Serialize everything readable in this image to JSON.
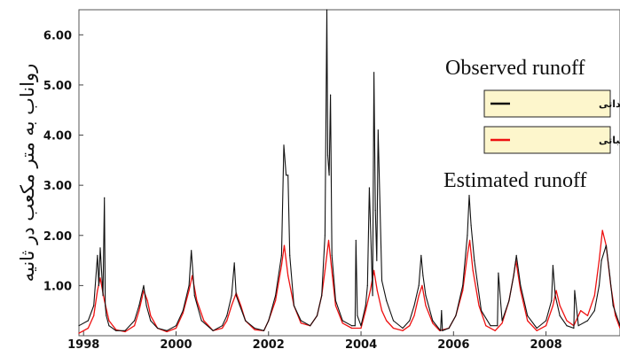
{
  "chart_data": {
    "type": "line",
    "ylabel": "رواناب به متر مکعب در ثانیه",
    "xlim": [
      1997.9,
      2009.6
    ],
    "ylim": [
      0,
      6.5
    ],
    "x_ticks": [
      1998,
      2000,
      2002,
      2004,
      2006,
      2008
    ],
    "x_tick_labels": [
      "1998",
      "2000",
      "2002",
      "2004",
      "2006",
      "2008"
    ],
    "y_ticks": [
      1,
      2,
      3,
      4,
      5,
      6
    ],
    "y_tick_labels": [
      "1.00",
      "2.00",
      "3.00",
      "4.00",
      "5.00",
      "6.00"
    ],
    "grid": false,
    "legend_placement": "right",
    "annotations": [
      {
        "text": "Observed runoff",
        "near": "upper-right"
      },
      {
        "text": "Estimated runoff",
        "near": "middle-right"
      }
    ],
    "series": [
      {
        "name": "رواناب مشاهداتی",
        "color": "#111111",
        "x": [
          1997.9,
          1998.1,
          1998.22,
          1998.3,
          1998.33,
          1998.36,
          1998.42,
          1998.45,
          1998.47,
          1998.49,
          1998.55,
          1998.7,
          1998.9,
          1999.1,
          1999.2,
          1999.3,
          1999.36,
          1999.45,
          1999.6,
          1999.8,
          2000.0,
          2000.15,
          2000.28,
          2000.33,
          2000.4,
          2000.55,
          2000.8,
          2001.0,
          2001.1,
          2001.2,
          2001.26,
          2001.3,
          2001.38,
          2001.5,
          2001.7,
          2001.9,
          2002.0,
          2002.15,
          2002.28,
          2002.33,
          2002.38,
          2002.42,
          2002.46,
          2002.55,
          2002.7,
          2002.9,
          2003.05,
          2003.15,
          2003.22,
          2003.26,
          2003.28,
          2003.31,
          2003.34,
          2003.37,
          2003.45,
          2003.6,
          2003.8,
          2003.87,
          2003.89,
          2003.92,
          2004.0,
          2004.1,
          2004.14,
          2004.18,
          2004.25,
          2004.28,
          2004.31,
          2004.34,
          2004.37,
          2004.45,
          2004.55,
          2004.7,
          2004.9,
          2005.05,
          2005.15,
          2005.25,
          2005.3,
          2005.34,
          2005.4,
          2005.55,
          2005.72,
          2005.74,
          2005.76,
          2005.9,
          2006.05,
          2006.2,
          2006.3,
          2006.34,
          2006.38,
          2006.45,
          2006.6,
          2006.8,
          2006.95,
          2006.97,
          2007.05,
          2007.2,
          2007.3,
          2007.36,
          2007.45,
          2007.6,
          2007.8,
          2008.0,
          2008.12,
          2008.15,
          2008.2,
          2008.3,
          2008.45,
          2008.6,
          2008.62,
          2008.7,
          2008.9,
          2009.05,
          2009.15,
          2009.2,
          2009.3,
          2009.38,
          2009.45,
          2009.6
        ],
        "values": [
          0.2,
          0.3,
          0.6,
          1.6,
          1.0,
          1.75,
          0.8,
          2.75,
          0.6,
          0.4,
          0.2,
          0.1,
          0.1,
          0.3,
          0.6,
          1.0,
          0.6,
          0.3,
          0.15,
          0.1,
          0.2,
          0.5,
          1.0,
          1.7,
          0.8,
          0.3,
          0.1,
          0.2,
          0.4,
          0.8,
          1.45,
          0.8,
          0.6,
          0.3,
          0.15,
          0.1,
          0.3,
          0.8,
          1.6,
          3.8,
          3.2,
          3.2,
          1.6,
          0.6,
          0.3,
          0.2,
          0.4,
          0.8,
          2.0,
          6.5,
          3.6,
          3.2,
          4.8,
          1.6,
          0.7,
          0.3,
          0.2,
          0.2,
          1.9,
          0.4,
          0.2,
          0.6,
          1.0,
          2.95,
          0.8,
          5.25,
          2.5,
          1.5,
          4.1,
          1.1,
          0.7,
          0.3,
          0.15,
          0.3,
          0.6,
          1.0,
          1.6,
          1.2,
          0.8,
          0.3,
          0.1,
          0.5,
          0.1,
          0.15,
          0.4,
          1.0,
          2.0,
          2.8,
          2.2,
          1.5,
          0.5,
          0.2,
          0.2,
          1.25,
          0.3,
          0.7,
          1.2,
          1.6,
          1.0,
          0.4,
          0.15,
          0.3,
          0.7,
          1.4,
          0.8,
          0.4,
          0.2,
          0.15,
          0.9,
          0.2,
          0.3,
          0.5,
          1.0,
          1.5,
          1.8,
          1.2,
          0.6,
          0.2
        ]
      },
      {
        "name": "رواناب محاسباتی",
        "color": "#ee1111",
        "x": [
          1997.9,
          1998.1,
          1998.22,
          1998.3,
          1998.36,
          1998.45,
          1998.55,
          1998.7,
          1998.9,
          1999.1,
          1999.2,
          1999.3,
          1999.38,
          1999.45,
          1999.6,
          1999.8,
          2000.0,
          2000.15,
          2000.28,
          2000.35,
          2000.45,
          2000.6,
          2000.8,
          2001.0,
          2001.1,
          2001.2,
          2001.3,
          2001.4,
          2001.5,
          2001.7,
          2001.9,
          2002.0,
          2002.15,
          2002.28,
          2002.34,
          2002.42,
          2002.55,
          2002.7,
          2002.9,
          2003.05,
          2003.15,
          2003.22,
          2003.3,
          2003.38,
          2003.45,
          2003.6,
          2003.8,
          2004.0,
          2004.1,
          2004.2,
          2004.28,
          2004.35,
          2004.45,
          2004.55,
          2004.7,
          2004.9,
          2005.05,
          2005.15,
          2005.25,
          2005.32,
          2005.4,
          2005.55,
          2005.7,
          2005.9,
          2006.05,
          2006.2,
          2006.3,
          2006.35,
          2006.42,
          2006.55,
          2006.7,
          2006.9,
          2007.05,
          2007.2,
          2007.3,
          2007.35,
          2007.45,
          2007.6,
          2007.8,
          2008.0,
          2008.15,
          2008.22,
          2008.3,
          2008.45,
          2008.6,
          2008.75,
          2008.9,
          2009.05,
          2009.15,
          2009.22,
          2009.3,
          2009.4,
          2009.5,
          2009.6
        ],
        "values": [
          0.05,
          0.15,
          0.4,
          0.9,
          1.15,
          0.7,
          0.3,
          0.12,
          0.08,
          0.2,
          0.5,
          0.9,
          0.7,
          0.4,
          0.15,
          0.08,
          0.15,
          0.45,
          0.9,
          1.2,
          0.7,
          0.3,
          0.1,
          0.15,
          0.3,
          0.6,
          0.85,
          0.6,
          0.3,
          0.12,
          0.1,
          0.3,
          0.7,
          1.4,
          1.8,
          1.2,
          0.6,
          0.25,
          0.2,
          0.4,
          0.8,
          1.3,
          1.9,
          1.2,
          0.6,
          0.25,
          0.15,
          0.15,
          0.5,
          0.9,
          1.3,
          0.9,
          0.5,
          0.3,
          0.15,
          0.1,
          0.2,
          0.4,
          0.8,
          1.0,
          0.6,
          0.25,
          0.1,
          0.15,
          0.4,
          0.9,
          1.6,
          1.9,
          1.3,
          0.6,
          0.2,
          0.1,
          0.25,
          0.7,
          1.2,
          1.5,
          0.9,
          0.3,
          0.1,
          0.2,
          0.6,
          0.9,
          0.6,
          0.3,
          0.2,
          0.5,
          0.4,
          0.8,
          1.5,
          2.1,
          1.8,
          1.0,
          0.4,
          0.15
        ]
      }
    ]
  }
}
